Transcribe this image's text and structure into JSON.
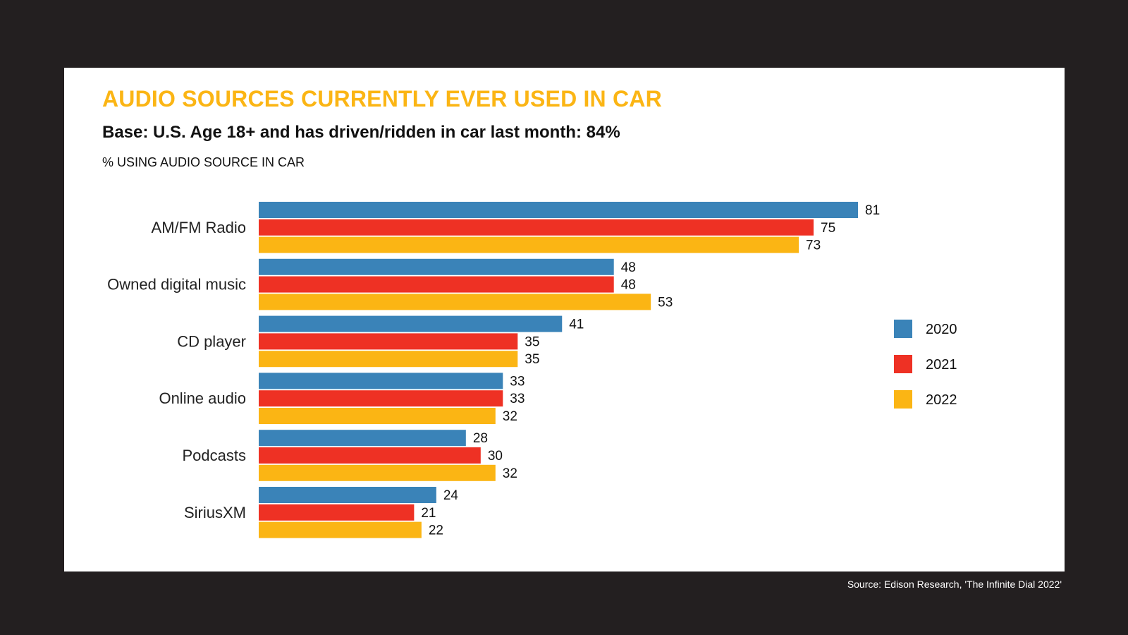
{
  "chart_data": {
    "type": "bar",
    "orientation": "horizontal",
    "title": "AUDIO SOURCES CURRENTLY EVER USED IN CAR",
    "subtitle": "Base: U.S. Age 18+ and has driven/ridden in car last month: 84%",
    "xlabel": "% USING AUDIO SOURCE IN CAR",
    "ylabel": "",
    "xlim": [
      0,
      100
    ],
    "grid": false,
    "legend_position": "right",
    "categories": [
      "AM/FM Radio",
      "Owned digital music",
      "CD player",
      "Online audio",
      "Podcasts",
      "SiriusXM"
    ],
    "series": [
      {
        "name": "2020",
        "color": "#3a83b8",
        "values": [
          81,
          48,
          41,
          33,
          28,
          24
        ]
      },
      {
        "name": "2021",
        "color": "#ee3124",
        "values": [
          75,
          48,
          35,
          33,
          30,
          21
        ]
      },
      {
        "name": "2022",
        "color": "#fbb514",
        "values": [
          73,
          53,
          35,
          32,
          32,
          22
        ]
      }
    ]
  },
  "source": "Source: Edison Research, 'The Infinite Dial 2022'"
}
